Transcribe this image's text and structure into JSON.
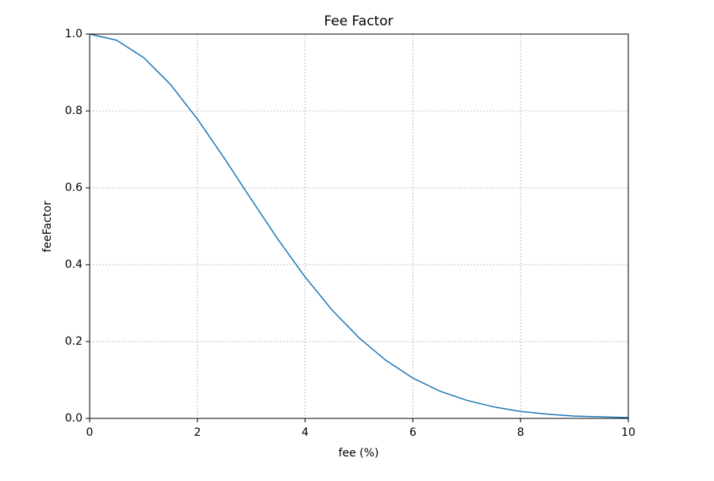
{
  "chart_data": {
    "type": "line",
    "title": "Fee Factor",
    "xlabel": "fee (%)",
    "ylabel": "feeFactor",
    "x": [
      0,
      0.5,
      1,
      1.5,
      2,
      2.5,
      3,
      3.5,
      4,
      4.5,
      5,
      5.5,
      6,
      6.5,
      7,
      7.5,
      8,
      8.5,
      9,
      9.5,
      10
    ],
    "series": [
      {
        "name": "feeFactor",
        "color": "#1f77b4",
        "values": [
          1,
          0.984,
          0.939,
          0.869,
          0.779,
          0.677,
          0.57,
          0.465,
          0.368,
          0.282,
          0.21,
          0.151,
          0.105,
          0.071,
          0.047,
          0.03,
          0.018,
          0.011,
          0.006,
          0.004,
          0.002
        ]
      }
    ],
    "xlim": [
      0,
      10
    ],
    "xticks": [
      0,
      2,
      4,
      6,
      8,
      10
    ],
    "ylim": [
      0,
      1
    ],
    "yticks": [
      {
        "value": 0,
        "label": "0.0"
      },
      0.2,
      0.4,
      0.6,
      0.8,
      {
        "value": 1,
        "label": "1.0"
      }
    ],
    "grid": true
  }
}
